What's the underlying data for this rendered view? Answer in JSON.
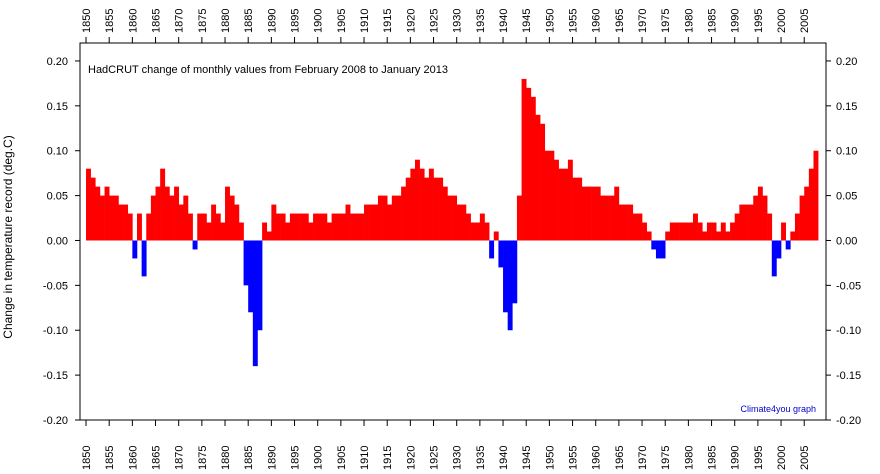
{
  "chart_data": {
    "type": "bar",
    "title": "HadCRUT change of monthly values from February 2008 to January 2013",
    "y_label": "Change in temperature record (deg.C)",
    "annotation": "Climate4you graph",
    "positive_color": "#ff0000",
    "negative_color": "#0000ff",
    "x": [
      1850,
      1851,
      1852,
      1853,
      1854,
      1855,
      1856,
      1857,
      1858,
      1859,
      1860,
      1861,
      1862,
      1863,
      1864,
      1865,
      1866,
      1867,
      1868,
      1869,
      1870,
      1871,
      1872,
      1873,
      1874,
      1875,
      1876,
      1877,
      1878,
      1879,
      1880,
      1881,
      1882,
      1883,
      1884,
      1885,
      1886,
      1887,
      1888,
      1889,
      1890,
      1891,
      1892,
      1893,
      1894,
      1895,
      1896,
      1897,
      1898,
      1899,
      1900,
      1901,
      1902,
      1903,
      1904,
      1905,
      1906,
      1907,
      1908,
      1909,
      1910,
      1911,
      1912,
      1913,
      1914,
      1915,
      1916,
      1917,
      1918,
      1919,
      1920,
      1921,
      1922,
      1923,
      1924,
      1925,
      1926,
      1927,
      1928,
      1929,
      1930,
      1931,
      1932,
      1933,
      1934,
      1935,
      1936,
      1937,
      1938,
      1939,
      1940,
      1941,
      1942,
      1943,
      1944,
      1945,
      1946,
      1947,
      1948,
      1949,
      1950,
      1951,
      1952,
      1953,
      1954,
      1955,
      1956,
      1957,
      1958,
      1959,
      1960,
      1961,
      1962,
      1963,
      1964,
      1965,
      1966,
      1967,
      1968,
      1969,
      1970,
      1971,
      1972,
      1973,
      1974,
      1975,
      1976,
      1977,
      1978,
      1979,
      1980,
      1981,
      1982,
      1983,
      1984,
      1985,
      1986,
      1987,
      1988,
      1989,
      1990,
      1991,
      1992,
      1993,
      1994,
      1995,
      1996,
      1997,
      1998,
      1999,
      2000,
      2001,
      2002,
      2003,
      2004,
      2005,
      2006,
      2007
    ],
    "values": [
      0.08,
      0.07,
      0.06,
      0.05,
      0.06,
      0.05,
      0.05,
      0.04,
      0.04,
      0.03,
      -0.02,
      0.03,
      -0.04,
      0.03,
      0.05,
      0.06,
      0.08,
      0.06,
      0.05,
      0.06,
      0.04,
      0.05,
      0.03,
      -0.01,
      0.03,
      0.03,
      0.02,
      0.04,
      0.03,
      0.02,
      0.06,
      0.05,
      0.04,
      0.02,
      -0.05,
      -0.08,
      -0.14,
      -0.1,
      0.02,
      0.01,
      0.04,
      0.03,
      0.03,
      0.02,
      0.03,
      0.03,
      0.03,
      0.03,
      0.02,
      0.03,
      0.03,
      0.03,
      0.02,
      0.03,
      0.03,
      0.03,
      0.04,
      0.03,
      0.03,
      0.03,
      0.04,
      0.04,
      0.04,
      0.05,
      0.05,
      0.04,
      0.05,
      0.05,
      0.06,
      0.07,
      0.08,
      0.09,
      0.08,
      0.07,
      0.08,
      0.07,
      0.07,
      0.06,
      0.05,
      0.05,
      0.04,
      0.04,
      0.03,
      0.02,
      0.02,
      0.03,
      0.02,
      -0.02,
      0.01,
      -0.03,
      -0.08,
      -0.1,
      -0.07,
      0.05,
      0.18,
      0.17,
      0.16,
      0.14,
      0.13,
      0.1,
      0.1,
      0.09,
      0.08,
      0.08,
      0.09,
      0.07,
      0.07,
      0.06,
      0.06,
      0.06,
      0.06,
      0.05,
      0.05,
      0.05,
      0.06,
      0.04,
      0.04,
      0.04,
      0.03,
      0.03,
      0.02,
      0.01,
      -0.01,
      -0.02,
      -0.02,
      0.01,
      0.02,
      0.02,
      0.02,
      0.02,
      0.02,
      0.03,
      0.02,
      0.01,
      0.02,
      0.02,
      0.01,
      0.02,
      0.01,
      0.02,
      0.03,
      0.04,
      0.04,
      0.04,
      0.05,
      0.06,
      0.05,
      0.03,
      -0.04,
      -0.02,
      0.02,
      -0.01,
      0.01,
      0.03,
      0.05,
      0.06,
      0.08,
      0.1
    ],
    "xlim": [
      1848.7,
      2009.7
    ],
    "xticks": [
      1850,
      1855,
      1860,
      1865,
      1870,
      1875,
      1880,
      1885,
      1890,
      1895,
      1900,
      1905,
      1910,
      1915,
      1920,
      1925,
      1930,
      1935,
      1940,
      1945,
      1950,
      1955,
      1960,
      1965,
      1970,
      1975,
      1980,
      1985,
      1990,
      1995,
      2000,
      2005
    ],
    "ylim": [
      -0.2,
      0.22
    ],
    "yticks": [
      {
        "value": 0.2,
        "label": "0.20"
      },
      {
        "value": 0.15,
        "label": "0.15"
      },
      {
        "value": 0.1,
        "label": "0.10"
      },
      {
        "value": 0.05,
        "label": "0.05"
      },
      {
        "value": 0,
        "label": "0.00"
      },
      {
        "value": -0.05,
        "label": "-0.05"
      },
      {
        "value": -0.1,
        "label": "-0.10"
      },
      {
        "value": -0.15,
        "label": "-0.15"
      },
      {
        "value": -0.2,
        "label": "-0.20"
      }
    ]
  }
}
